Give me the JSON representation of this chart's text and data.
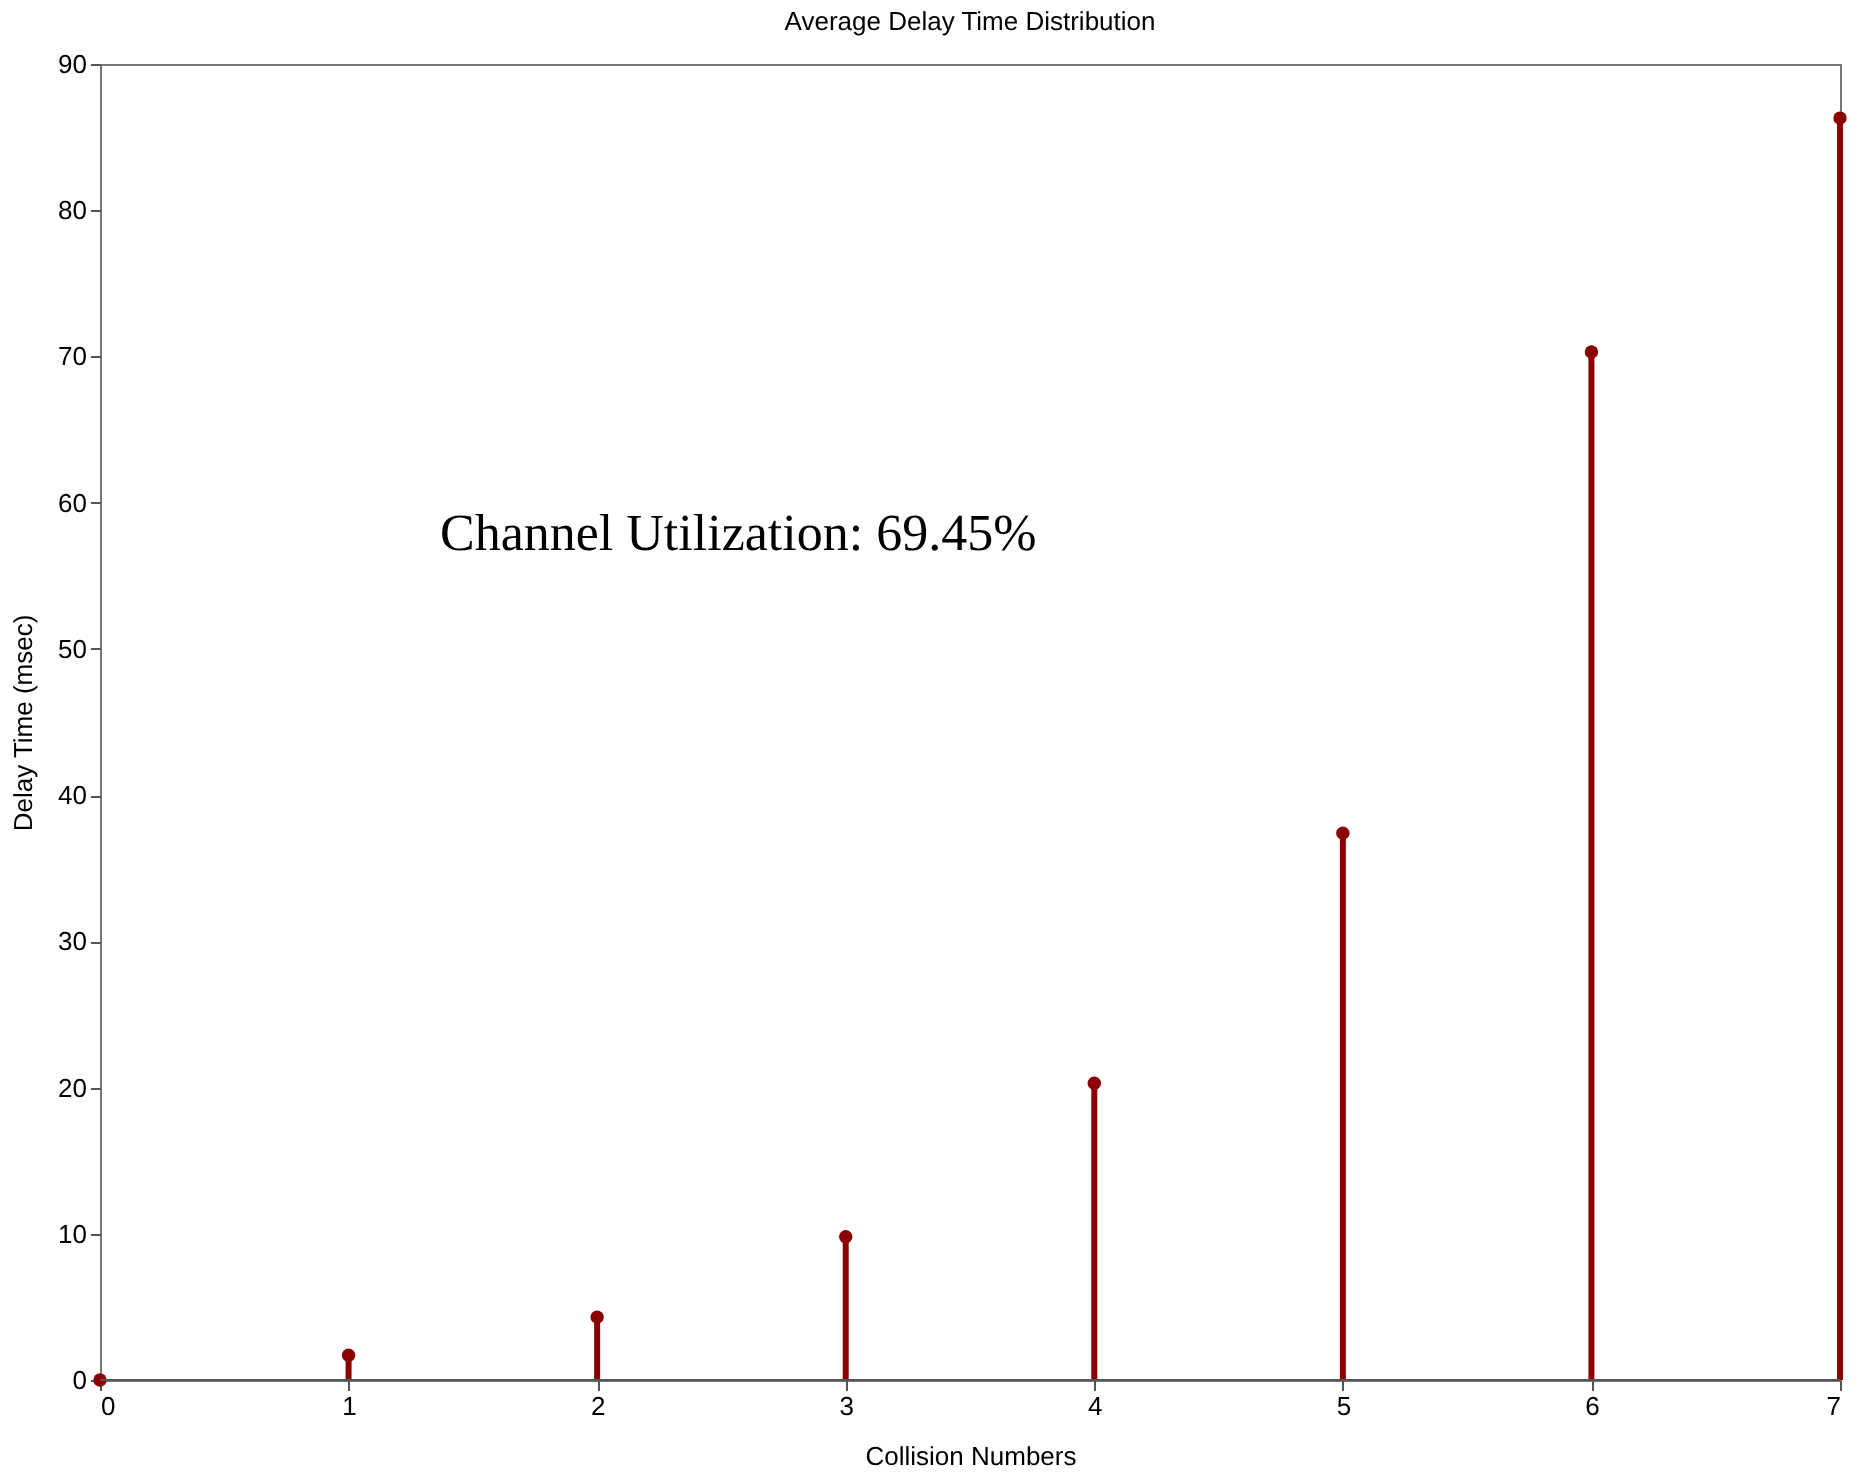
{
  "chart_data": {
    "type": "lollipop",
    "title": "Average Delay Time Distribution",
    "xlabel": "Collision Numbers",
    "ylabel": "Delay Time (msec)",
    "x": [
      0,
      1,
      2,
      3,
      4,
      5,
      6,
      7
    ],
    "series": [
      {
        "color": "#8b0000",
        "values": [
          0,
          1.7,
          4.3,
          9.8,
          20.3,
          37.4,
          70.3,
          86.3
        ]
      }
    ],
    "xlim": [
      0,
      7
    ],
    "xticks": [
      0,
      1,
      2,
      3,
      4,
      5,
      6,
      7
    ],
    "ylim": [
      0,
      90
    ],
    "yticks": [
      0,
      10,
      20,
      30,
      40,
      50,
      60,
      70,
      80,
      90
    ],
    "grid": false,
    "marker": "circle",
    "annotations": [
      "Channel Utilization: 69.45%"
    ]
  }
}
